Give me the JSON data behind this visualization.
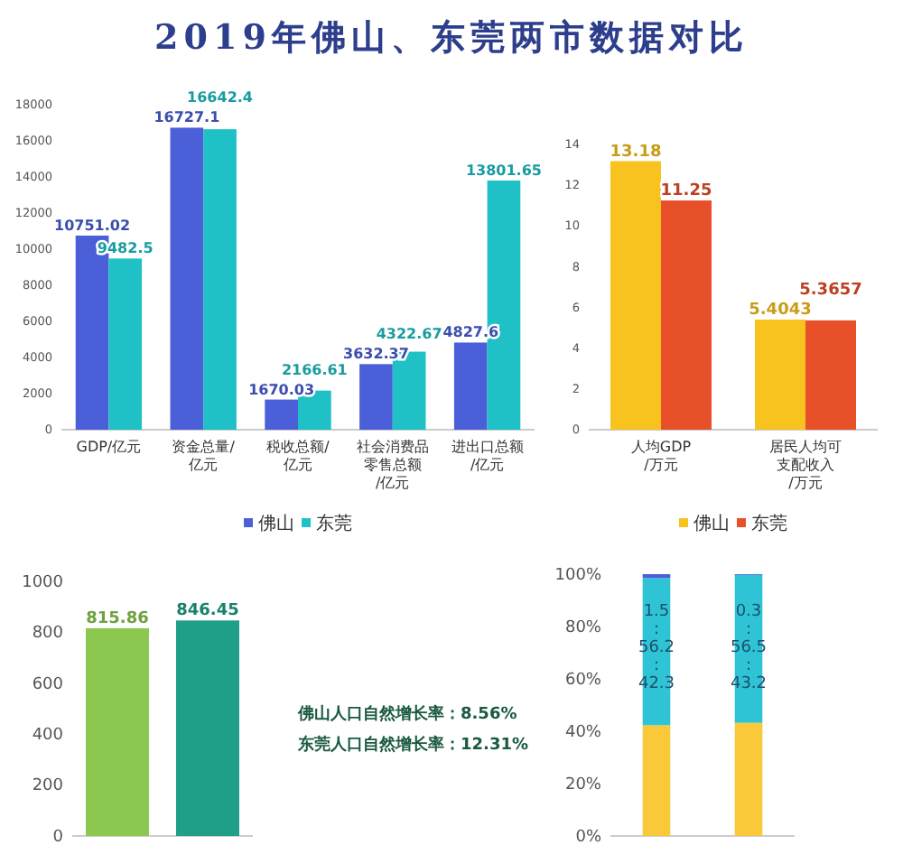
{
  "chart_data": [
    {
      "type": "bar",
      "title": "2019年佛山、东莞两市数据对比",
      "categories": [
        "GDP/亿元",
        "资金总量/亿元",
        "税收总额/亿元",
        "社会消费品零售总额/亿元",
        "进出口总额/亿元"
      ],
      "series": [
        {
          "name": "佛山",
          "color": "#4a5fd8",
          "values": [
            10751.02,
            16727.1,
            1670.03,
            3632.37,
            4827.6
          ]
        },
        {
          "name": "东莞",
          "color": "#1fc1c6",
          "values": [
            9482.5,
            16642.4,
            2166.61,
            4322.67,
            13801.65
          ]
        }
      ],
      "ylim": [
        0,
        18000
      ],
      "yticks": [
        0,
        2000,
        4000,
        6000,
        8000,
        10000,
        12000,
        14000,
        16000,
        18000
      ],
      "data_labels": true,
      "legend": "bottom"
    },
    {
      "type": "bar",
      "categories": [
        "人均GDP/万元",
        "居民人均可支配收入/万元"
      ],
      "series": [
        {
          "name": "佛山",
          "color": "#f8c31e",
          "values": [
            13.18,
            5.4043
          ]
        },
        {
          "name": "东莞",
          "color": "#e8502a",
          "values": [
            11.25,
            5.3657
          ]
        }
      ],
      "ylim": [
        0,
        14
      ],
      "yticks": [
        0,
        2,
        4,
        6,
        8,
        10,
        12,
        14
      ],
      "data_labels": true,
      "legend": "bottom"
    },
    {
      "type": "bar",
      "categories": [
        null,
        null
      ],
      "values": [
        815.86,
        846.45
      ],
      "colors": [
        "#8cc74f",
        "#1f9e88"
      ],
      "ylim": [
        0,
        1000
      ],
      "yticks": [
        0,
        200,
        400,
        600,
        800,
        1000
      ],
      "data_labels": true,
      "annotations": [
        "佛山人口自然增长率：8.56%",
        "东莞人口自然增长率：12.31%"
      ]
    },
    {
      "type": "bar",
      "stacked": true,
      "categories": [
        null,
        null
      ],
      "series": [
        {
          "color": "#f9c93a",
          "values": [
            42.3,
            43.2
          ]
        },
        {
          "color": "#2ec4d6",
          "values": [
            56.2,
            56.5
          ]
        },
        {
          "color": "#4a5fd8",
          "values": [
            1.5,
            0.3
          ]
        }
      ],
      "ylim": [
        0,
        100
      ],
      "yticks": [
        {
          "value": 0,
          "label": "0%"
        },
        {
          "value": 20,
          "label": "20%"
        },
        {
          "value": 40,
          "label": "40%"
        },
        {
          "value": 60,
          "label": "60%"
        },
        {
          "value": 80,
          "label": "80%"
        },
        {
          "value": 100,
          "label": "100%"
        }
      ],
      "annotations": [
        "1.5:56.2:42.3",
        "0.3:56.5:43.2"
      ]
    }
  ]
}
